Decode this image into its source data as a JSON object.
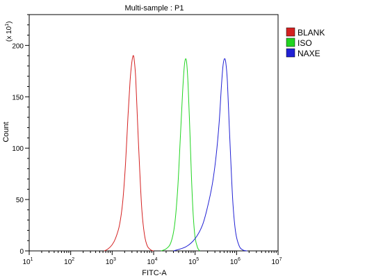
{
  "chart_data": {
    "type": "line",
    "title": "Multi-sample : P1",
    "xlabel": "FITC-A",
    "ylabel": "Count",
    "y_multiplier": "(x 10",
    "y_multiplier_exp": "1",
    "x_scale": "log",
    "xlim": [
      10,
      10000000
    ],
    "ylim": [
      0,
      230
    ],
    "x_ticks": [
      {
        "value": 10,
        "base": "10",
        "exp": "1"
      },
      {
        "value": 100,
        "base": "10",
        "exp": "2"
      },
      {
        "value": 1000,
        "base": "10",
        "exp": "3"
      },
      {
        "value": 10000,
        "base": "10",
        "exp": "4"
      },
      {
        "value": 100000,
        "base": "10",
        "exp": "5"
      },
      {
        "value": 1000000,
        "base": "10",
        "exp": "6"
      },
      {
        "value": 10000000,
        "base": "10",
        "exp": "7"
      }
    ],
    "y_ticks": [
      {
        "value": 0,
        "label": "0"
      },
      {
        "value": 50,
        "label": "50"
      },
      {
        "value": 100,
        "label": "100"
      },
      {
        "value": 150,
        "label": "150"
      },
      {
        "value": 200,
        "label": "200"
      }
    ],
    "legend_position": "right",
    "grid": false,
    "series": [
      {
        "name": "BLANK",
        "color": "#d42020",
        "points": [
          [
            650,
            0
          ],
          [
            800,
            2
          ],
          [
            1000,
            6
          ],
          [
            1200,
            12
          ],
          [
            1500,
            25
          ],
          [
            1800,
            48
          ],
          [
            2100,
            85
          ],
          [
            2400,
            130
          ],
          [
            2700,
            165
          ],
          [
            2950,
            182
          ],
          [
            3200,
            190
          ],
          [
            3400,
            186
          ],
          [
            3700,
            168
          ],
          [
            4100,
            125
          ],
          [
            4600,
            80
          ],
          [
            5200,
            40
          ],
          [
            6000,
            16
          ],
          [
            7000,
            5
          ],
          [
            8500,
            1
          ],
          [
            10000,
            0
          ]
        ]
      },
      {
        "name": "ISO",
        "color": "#20d420",
        "points": [
          [
            15000,
            0
          ],
          [
            20000,
            2
          ],
          [
            26000,
            8
          ],
          [
            32000,
            25
          ],
          [
            38000,
            60
          ],
          [
            44000,
            110
          ],
          [
            50000,
            155
          ],
          [
            55000,
            180
          ],
          [
            59000,
            187
          ],
          [
            63000,
            182
          ],
          [
            68000,
            160
          ],
          [
            75000,
            115
          ],
          [
            82000,
            70
          ],
          [
            90000,
            35
          ],
          [
            100000,
            13
          ],
          [
            115000,
            3
          ],
          [
            130000,
            0
          ]
        ]
      },
      {
        "name": "NAXE",
        "color": "#2020d4",
        "points": [
          [
            30000,
            0
          ],
          [
            60000,
            4
          ],
          [
            100000,
            12
          ],
          [
            150000,
            25
          ],
          [
            200000,
            43
          ],
          [
            260000,
            65
          ],
          [
            320000,
            92
          ],
          [
            380000,
            125
          ],
          [
            430000,
            160
          ],
          [
            470000,
            180
          ],
          [
            510000,
            187
          ],
          [
            550000,
            183
          ],
          [
            600000,
            165
          ],
          [
            660000,
            125
          ],
          [
            730000,
            85
          ],
          [
            820000,
            45
          ],
          [
            950000,
            18
          ],
          [
            1150000,
            5
          ],
          [
            1400000,
            1
          ],
          [
            1800000,
            0
          ]
        ]
      }
    ]
  }
}
